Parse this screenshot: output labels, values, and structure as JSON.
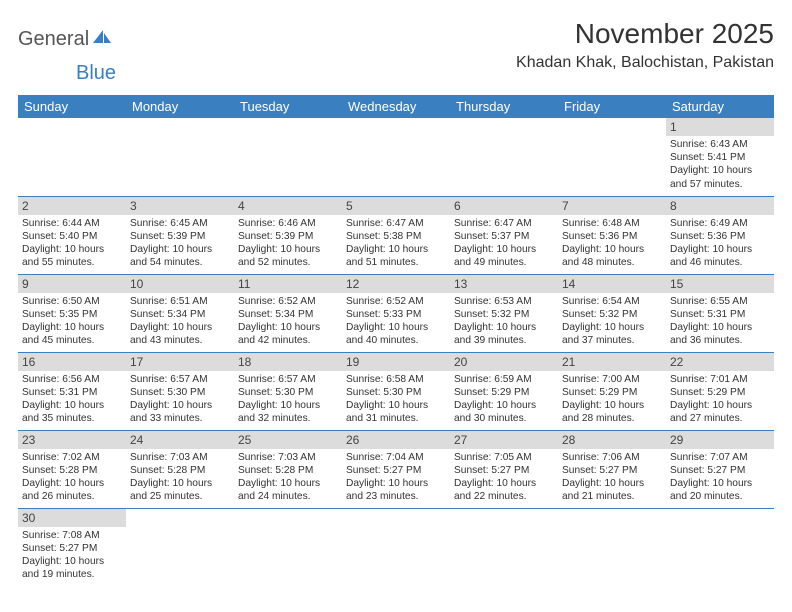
{
  "logo": {
    "text1": "General",
    "text2": "Blue"
  },
  "title": "November 2025",
  "location": "Khadan Khak, Balochistan, Pakistan",
  "colors": {
    "header_bg": "#3a7fc0",
    "header_text": "#ffffff",
    "daynum_bg": "#dcdcdc",
    "row_border": "#3a7fc0",
    "text": "#333333"
  },
  "weekdays": [
    "Sunday",
    "Monday",
    "Tuesday",
    "Wednesday",
    "Thursday",
    "Friday",
    "Saturday"
  ],
  "grid": [
    [
      null,
      null,
      null,
      null,
      null,
      null,
      {
        "n": "1",
        "sr": "6:43 AM",
        "ss": "5:41 PM",
        "dl": "10 hours and 57 minutes."
      }
    ],
    [
      {
        "n": "2",
        "sr": "6:44 AM",
        "ss": "5:40 PM",
        "dl": "10 hours and 55 minutes."
      },
      {
        "n": "3",
        "sr": "6:45 AM",
        "ss": "5:39 PM",
        "dl": "10 hours and 54 minutes."
      },
      {
        "n": "4",
        "sr": "6:46 AM",
        "ss": "5:39 PM",
        "dl": "10 hours and 52 minutes."
      },
      {
        "n": "5",
        "sr": "6:47 AM",
        "ss": "5:38 PM",
        "dl": "10 hours and 51 minutes."
      },
      {
        "n": "6",
        "sr": "6:47 AM",
        "ss": "5:37 PM",
        "dl": "10 hours and 49 minutes."
      },
      {
        "n": "7",
        "sr": "6:48 AM",
        "ss": "5:36 PM",
        "dl": "10 hours and 48 minutes."
      },
      {
        "n": "8",
        "sr": "6:49 AM",
        "ss": "5:36 PM",
        "dl": "10 hours and 46 minutes."
      }
    ],
    [
      {
        "n": "9",
        "sr": "6:50 AM",
        "ss": "5:35 PM",
        "dl": "10 hours and 45 minutes."
      },
      {
        "n": "10",
        "sr": "6:51 AM",
        "ss": "5:34 PM",
        "dl": "10 hours and 43 minutes."
      },
      {
        "n": "11",
        "sr": "6:52 AM",
        "ss": "5:34 PM",
        "dl": "10 hours and 42 minutes."
      },
      {
        "n": "12",
        "sr": "6:52 AM",
        "ss": "5:33 PM",
        "dl": "10 hours and 40 minutes."
      },
      {
        "n": "13",
        "sr": "6:53 AM",
        "ss": "5:32 PM",
        "dl": "10 hours and 39 minutes."
      },
      {
        "n": "14",
        "sr": "6:54 AM",
        "ss": "5:32 PM",
        "dl": "10 hours and 37 minutes."
      },
      {
        "n": "15",
        "sr": "6:55 AM",
        "ss": "5:31 PM",
        "dl": "10 hours and 36 minutes."
      }
    ],
    [
      {
        "n": "16",
        "sr": "6:56 AM",
        "ss": "5:31 PM",
        "dl": "10 hours and 35 minutes."
      },
      {
        "n": "17",
        "sr": "6:57 AM",
        "ss": "5:30 PM",
        "dl": "10 hours and 33 minutes."
      },
      {
        "n": "18",
        "sr": "6:57 AM",
        "ss": "5:30 PM",
        "dl": "10 hours and 32 minutes."
      },
      {
        "n": "19",
        "sr": "6:58 AM",
        "ss": "5:30 PM",
        "dl": "10 hours and 31 minutes."
      },
      {
        "n": "20",
        "sr": "6:59 AM",
        "ss": "5:29 PM",
        "dl": "10 hours and 30 minutes."
      },
      {
        "n": "21",
        "sr": "7:00 AM",
        "ss": "5:29 PM",
        "dl": "10 hours and 28 minutes."
      },
      {
        "n": "22",
        "sr": "7:01 AM",
        "ss": "5:29 PM",
        "dl": "10 hours and 27 minutes."
      }
    ],
    [
      {
        "n": "23",
        "sr": "7:02 AM",
        "ss": "5:28 PM",
        "dl": "10 hours and 26 minutes."
      },
      {
        "n": "24",
        "sr": "7:03 AM",
        "ss": "5:28 PM",
        "dl": "10 hours and 25 minutes."
      },
      {
        "n": "25",
        "sr": "7:03 AM",
        "ss": "5:28 PM",
        "dl": "10 hours and 24 minutes."
      },
      {
        "n": "26",
        "sr": "7:04 AM",
        "ss": "5:27 PM",
        "dl": "10 hours and 23 minutes."
      },
      {
        "n": "27",
        "sr": "7:05 AM",
        "ss": "5:27 PM",
        "dl": "10 hours and 22 minutes."
      },
      {
        "n": "28",
        "sr": "7:06 AM",
        "ss": "5:27 PM",
        "dl": "10 hours and 21 minutes."
      },
      {
        "n": "29",
        "sr": "7:07 AM",
        "ss": "5:27 PM",
        "dl": "10 hours and 20 minutes."
      }
    ],
    [
      {
        "n": "30",
        "sr": "7:08 AM",
        "ss": "5:27 PM",
        "dl": "10 hours and 19 minutes."
      },
      null,
      null,
      null,
      null,
      null,
      null
    ]
  ],
  "labels": {
    "sunrise": "Sunrise: ",
    "sunset": "Sunset: ",
    "daylight": "Daylight: "
  }
}
